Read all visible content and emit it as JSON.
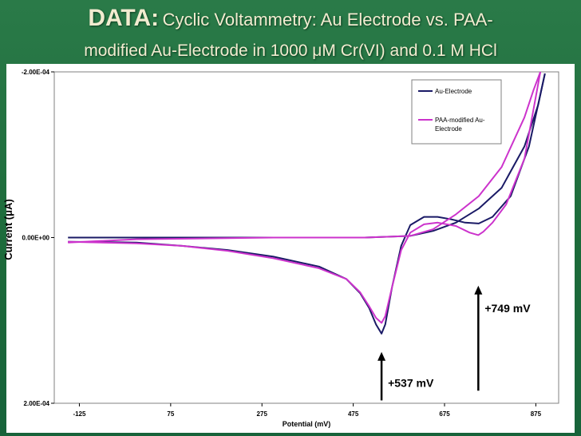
{
  "slide": {
    "title_bold": "DATA:",
    "title_rest": "Cyclic Voltammetry: Au Electrode vs. PAA-",
    "title_line2": "modified Au-Electrode in 1000 μM Cr(VI) and 0.1 M HCl"
  },
  "colors": {
    "au": "#1a1a66",
    "paa": "#cc33cc",
    "background": "#1f6e3e"
  },
  "chart_data": {
    "type": "line",
    "xlabel": "Potential (mV)",
    "ylabel": "Current (μA)",
    "xlim": [
      -180,
      925
    ],
    "ylim": [
      -0.0002,
      0.0002
    ],
    "y_inverted": true,
    "x_ticks": [
      "-125",
      "75",
      "275",
      "475",
      "675",
      "875"
    ],
    "x_tick_values": [
      -125,
      75,
      275,
      475,
      675,
      875
    ],
    "y_ticks": [
      "-2.00E-04",
      "0.00E+00",
      "2.00E-04"
    ],
    "y_tick_values": [
      -0.0002,
      0,
      0.0002
    ],
    "legend_position": "top-right",
    "series": [
      {
        "name": "Au-Electrode",
        "color_key": "au",
        "forward": [
          [
            -150,
            0.0
          ],
          [
            0,
            0.0
          ],
          [
            300,
            0.0
          ],
          [
            500,
            0.0
          ],
          [
            600,
            -2e-06
          ],
          [
            650,
            -8e-06
          ],
          [
            700,
            -1.8e-05
          ],
          [
            750,
            -3.5e-05
          ],
          [
            800,
            -6e-05
          ],
          [
            850,
            -0.00011
          ],
          [
            880,
            -0.00016
          ],
          [
            895,
            -0.000198
          ]
        ],
        "reverse": [
          [
            895,
            -0.000198
          ],
          [
            860,
            -0.00011
          ],
          [
            820,
            -5e-05
          ],
          [
            780,
            -2.5e-05
          ],
          [
            750,
            -1.7e-05
          ],
          [
            720,
            -1.8e-05
          ],
          [
            690,
            -2.2e-05
          ],
          [
            660,
            -2.5e-05
          ],
          [
            630,
            -2.5e-05
          ],
          [
            600,
            -1.5e-05
          ],
          [
            580,
            1e-05
          ],
          [
            560,
            6e-05
          ],
          [
            545,
            0.000105
          ],
          [
            537,
            0.000116
          ],
          [
            525,
            0.000105
          ],
          [
            510,
            8.5e-05
          ],
          [
            490,
            6.7e-05
          ],
          [
            460,
            5e-05
          ],
          [
            400,
            3.5e-05
          ],
          [
            300,
            2.3e-05
          ],
          [
            200,
            1.5e-05
          ],
          [
            100,
            1e-05
          ],
          [
            0,
            6e-06
          ],
          [
            -150,
            5e-06
          ]
        ]
      },
      {
        "name": "PAA-modified Au-Electrode",
        "color_key": "paa",
        "forward": [
          [
            -150,
            6e-06
          ],
          [
            0,
            2e-06
          ],
          [
            300,
            0.0
          ],
          [
            500,
            0.0
          ],
          [
            600,
            -2e-06
          ],
          [
            650,
            -1e-05
          ],
          [
            700,
            -2.8e-05
          ],
          [
            750,
            -5e-05
          ],
          [
            800,
            -8.5e-05
          ],
          [
            850,
            -0.000145
          ],
          [
            870,
            -0.000178
          ],
          [
            885,
            -0.0002
          ]
        ],
        "reverse": [
          [
            885,
            -0.0002
          ],
          [
            850,
            -9.5e-05
          ],
          [
            810,
            -4e-05
          ],
          [
            780,
            -1.8e-05
          ],
          [
            760,
            -7e-06
          ],
          [
            749,
            -3e-06
          ],
          [
            730,
            -6e-06
          ],
          [
            700,
            -1.4e-05
          ],
          [
            660,
            -1.8e-05
          ],
          [
            630,
            -1.6e-05
          ],
          [
            600,
            -6e-06
          ],
          [
            580,
            1.5e-05
          ],
          [
            560,
            6e-05
          ],
          [
            545,
            9.5e-05
          ],
          [
            537,
            0.000103
          ],
          [
            525,
            9.7e-05
          ],
          [
            510,
            8.3e-05
          ],
          [
            490,
            6.6e-05
          ],
          [
            460,
            5e-05
          ],
          [
            400,
            3.7e-05
          ],
          [
            300,
            2.5e-05
          ],
          [
            200,
            1.6e-05
          ],
          [
            100,
            1e-05
          ],
          [
            0,
            7e-06
          ],
          [
            -150,
            5e-06
          ]
        ]
      }
    ],
    "annotations": [
      {
        "label": "+537 mV",
        "x": 537,
        "y": 0.000185,
        "arrow_from_y": 0.000185,
        "arrow_to_y": 0.00014,
        "label_side": "right"
      },
      {
        "label": "+749 mV",
        "x": 749,
        "y": 0.000125,
        "arrow_from_y": 0.000125,
        "arrow_to_y": 6e-05,
        "label_side": "right"
      }
    ]
  }
}
